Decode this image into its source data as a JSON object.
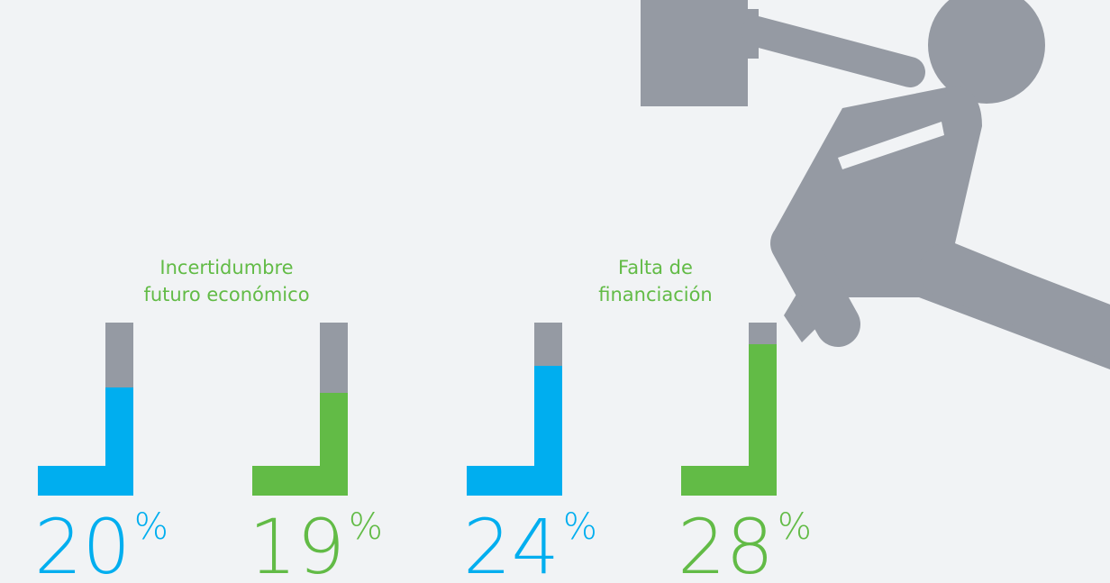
{
  "chart_data": {
    "type": "bar",
    "categories": [
      "Incertidumbre\nfuturo económico",
      "Falta de\nfinanciación"
    ],
    "series": [
      {
        "color": "#00aeef",
        "values": [
          20,
          24
        ],
        "value_labels": [
          "20%",
          "24%"
        ]
      },
      {
        "color": "#62bb46",
        "values": [
          19,
          28
        ],
        "value_labels": [
          "19%",
          "28%"
        ]
      }
    ],
    "track_color": "#959aa3",
    "ylim": [
      0,
      32
    ]
  }
}
